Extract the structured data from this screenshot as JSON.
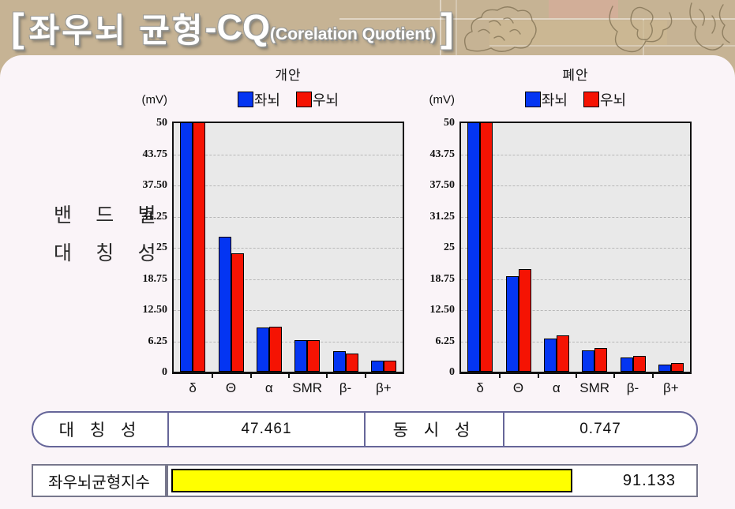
{
  "header": {
    "bracket_left": "[",
    "title_main": "좌우뇌 균형",
    "title_dash": "-",
    "title_cq": "CQ",
    "title_sub": "(Corelation Quotient)",
    "bracket_right": "]"
  },
  "side_label": {
    "line1": "밴 드 별",
    "line2": "대 칭 성"
  },
  "charts_shared": {
    "unit_label": "(mV)",
    "y_ticks": [
      "50",
      "43.75",
      "37.50",
      "31.25",
      "25",
      "18.75",
      "12.50",
      "6.25",
      "0"
    ],
    "legend": [
      {
        "label": "좌뇌",
        "color": "#0435f2"
      },
      {
        "label": "우뇌",
        "color": "#f51303"
      }
    ]
  },
  "chart_data": [
    {
      "type": "bar",
      "title": "개안",
      "categories": [
        "δ",
        "Θ",
        "α",
        "SMR",
        "β-",
        "β+"
      ],
      "series": [
        {
          "name": "좌뇌",
          "color": "#0435f2",
          "values": [
            50,
            27.0,
            8.8,
            6.4,
            4.1,
            2.2
          ]
        },
        {
          "name": "우뇌",
          "color": "#f51303",
          "values": [
            50,
            23.8,
            9.0,
            6.4,
            3.6,
            2.2
          ]
        }
      ],
      "ylabel": "(mV)",
      "ylim": [
        0,
        50
      ],
      "grid": true,
      "legend_position": "top"
    },
    {
      "type": "bar",
      "title": "폐안",
      "categories": [
        "δ",
        "Θ",
        "α",
        "SMR",
        "β-",
        "β+"
      ],
      "series": [
        {
          "name": "좌뇌",
          "color": "#0435f2",
          "values": [
            50,
            19.1,
            6.7,
            4.2,
            2.8,
            1.4
          ]
        },
        {
          "name": "우뇌",
          "color": "#f51303",
          "values": [
            50,
            20.6,
            7.3,
            4.7,
            3.2,
            1.8
          ]
        }
      ],
      "ylabel": "(mV)",
      "ylim": [
        0,
        50
      ],
      "grid": true,
      "legend_position": "top"
    }
  ],
  "summary_table": {
    "symmetry_label": "대 칭 성",
    "symmetry_value": "47.461",
    "synchrony_label": "동 시 성",
    "synchrony_value": "0.747"
  },
  "balance_index": {
    "label": "좌우뇌균형지수",
    "value": "91.133",
    "bar_color": "#ffff00",
    "bar_pct": 76
  }
}
